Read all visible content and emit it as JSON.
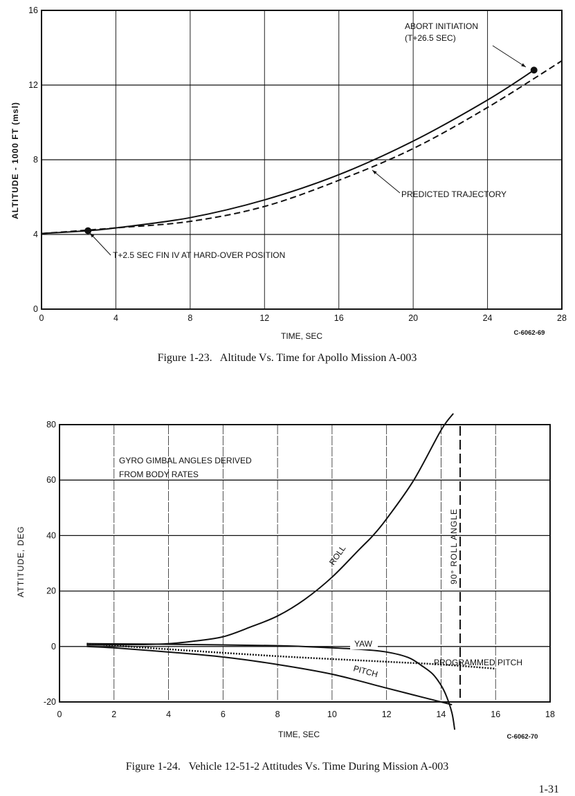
{
  "chart_data": [
    {
      "type": "line",
      "xlabel": "TIME, SEC",
      "ylabel": "ALTITUDE - 1000 FT (msl)",
      "xlim": [
        0,
        28
      ],
      "ylim": [
        0,
        16
      ],
      "xticks": [
        "0",
        "4",
        "8",
        "12",
        "16",
        "20",
        "24",
        "28"
      ],
      "yticks": [
        "0",
        "4",
        "8",
        "12",
        "16"
      ],
      "grid": true,
      "series": [
        {
          "style": "solid",
          "x": [
            0,
            2.5,
            4,
            8,
            12,
            16,
            20,
            24,
            26.5
          ],
          "y": [
            4.05,
            4.2,
            4.35,
            4.9,
            5.85,
            7.2,
            9.0,
            11.2,
            12.8
          ]
        },
        {
          "name": "PREDICTED TRAJECTORY",
          "style": "dashed",
          "x": [
            0,
            4,
            8,
            12,
            16,
            20,
            24,
            28
          ],
          "y": [
            4.05,
            4.35,
            4.7,
            5.5,
            6.9,
            8.6,
            10.8,
            13.3
          ]
        }
      ],
      "markers": [
        {
          "x": 2.5,
          "y": 4.2,
          "label": "T+2.5 SEC FIN IV AT HARD-OVER POSITION"
        },
        {
          "x": 26.5,
          "y": 12.8,
          "label": "ABORT INITIATION",
          "label2": "(T+26.5 SEC)"
        }
      ],
      "code": "C-6062-69",
      "caption": "Figure 1-23.   Altitude Vs. Time for Apollo Mission A-003"
    },
    {
      "type": "line",
      "xlabel": "TIME, SEC",
      "ylabel": "ATTITUDE, DEG",
      "xlim": [
        0,
        18
      ],
      "ylim": [
        -20,
        80
      ],
      "xticks": [
        "0",
        "2",
        "4",
        "6",
        "8",
        "10",
        "12",
        "14",
        "16",
        "18"
      ],
      "yticks": [
        "-20",
        "0",
        "20",
        "40",
        "60",
        "80"
      ],
      "grid": true,
      "note1": "GYRO GIMBAL ANGLES DERIVED",
      "note2": "FROM BODY RATES",
      "series": [
        {
          "name": "ROLL",
          "style": "solid",
          "x": [
            1,
            3,
            4,
            5,
            6,
            7,
            8,
            9,
            10,
            11,
            11.5,
            12,
            13,
            14,
            14.45
          ],
          "y": [
            0.5,
            0.7,
            1,
            2,
            3.5,
            7,
            11,
            17,
            25,
            35,
            40,
            46,
            60,
            78,
            84
          ]
        },
        {
          "name": "YAW",
          "style": "solid",
          "x": [
            1,
            4,
            8,
            10,
            11,
            12,
            12.8,
            13.3,
            13.7,
            14,
            14.2,
            14.4,
            14.5
          ],
          "y": [
            1,
            0.8,
            0.3,
            -0.5,
            -1,
            -2,
            -4,
            -7,
            -10,
            -14,
            -18,
            -24,
            -30
          ]
        },
        {
          "name": "PITCH",
          "style": "solid",
          "x": [
            1,
            2,
            4,
            6,
            8,
            10,
            12,
            13,
            14,
            14.4
          ],
          "y": [
            0,
            -0.5,
            -2,
            -3.8,
            -6.5,
            -10,
            -15,
            -17.5,
            -20,
            -21
          ]
        },
        {
          "name": "PROGRAMMED PITCH",
          "style": "dotted",
          "x": [
            1,
            4,
            8,
            12,
            14,
            16
          ],
          "y": [
            1,
            -1,
            -3.5,
            -5.5,
            -6.5,
            -8
          ]
        }
      ],
      "reference_line": {
        "x": 14.7,
        "label": "90° ROLL ANGLE"
      },
      "code": "C-6062-70",
      "caption": "Figure 1-24.   Vehicle 12-51-2 Attitudes Vs. Time During Mission A-003"
    }
  ],
  "page_number": "1-31"
}
